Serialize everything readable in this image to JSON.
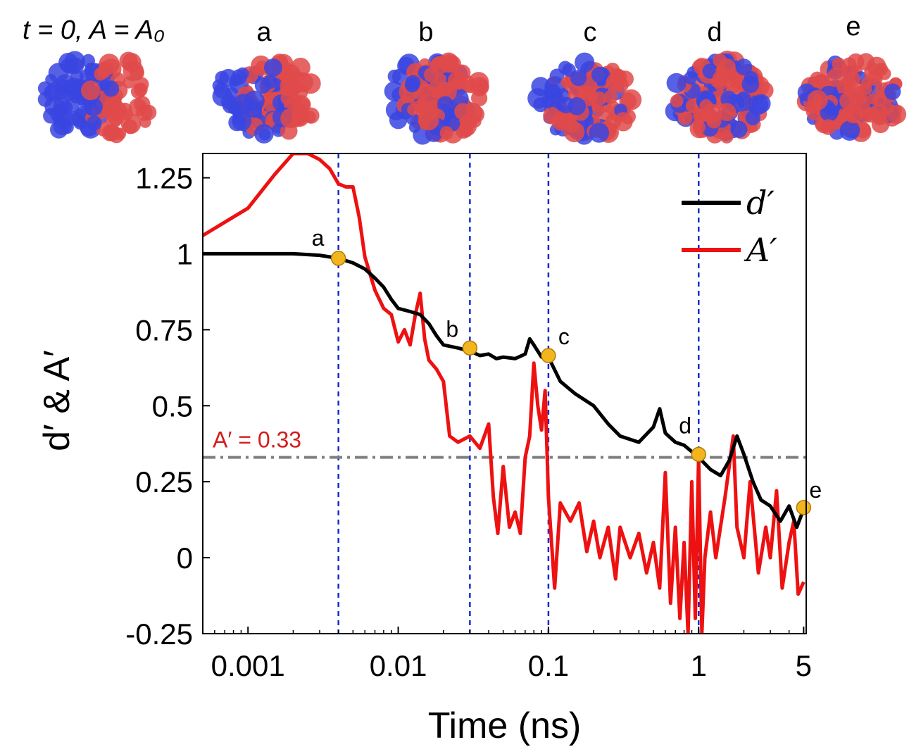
{
  "colors": {
    "d_prime": "#000000",
    "a_prime": "#ee1111",
    "marker": "#f2b51d",
    "vline": "#1a2bc9",
    "hline": "#808080",
    "protein_blue": "#3a45e0",
    "protein_red": "#e04a4a"
  },
  "snapshots": [
    {
      "label": "t = 0, A = A₀",
      "color_split": 0.5
    },
    {
      "label": "a",
      "color_split": 0.48
    },
    {
      "label": "b",
      "color_split": 0.42
    },
    {
      "label": "c",
      "color_split": 0.4
    },
    {
      "label": "d",
      "color_split": 0.35
    },
    {
      "label": "e",
      "color_split": 0.3
    }
  ],
  "chart_data": {
    "type": "line",
    "xscale": "log",
    "xlabel": "Time (ns)",
    "ylabel": "d′ & A′",
    "xlim": [
      0.0005,
      5.2
    ],
    "ylim": [
      -0.25,
      1.33
    ],
    "xticks": [
      0.001,
      0.01,
      0.1,
      1,
      5
    ],
    "xtick_labels": [
      "0.001",
      "0.01",
      "0.1",
      "1",
      "5"
    ],
    "yticks": [
      -0.25,
      0,
      0.25,
      0.5,
      0.75,
      1,
      1.25
    ],
    "ytick_labels": [
      "-0.25",
      "0",
      "0.25",
      "0.5",
      "0.75",
      "1",
      "1.25"
    ],
    "legend_position": "top-right",
    "series": [
      {
        "name": "d′",
        "x": [
          0.0005,
          0.001,
          0.002,
          0.003,
          0.004,
          0.005,
          0.006,
          0.007,
          0.008,
          0.009,
          0.01,
          0.012,
          0.014,
          0.016,
          0.018,
          0.02,
          0.025,
          0.03,
          0.035,
          0.04,
          0.045,
          0.05,
          0.06,
          0.07,
          0.075,
          0.08,
          0.09,
          0.1,
          0.12,
          0.15,
          0.2,
          0.25,
          0.3,
          0.4,
          0.5,
          0.55,
          0.6,
          0.7,
          0.8,
          1.0,
          1.2,
          1.4,
          1.6,
          1.8,
          2.0,
          2.3,
          2.6,
          3.0,
          3.5,
          4.0,
          4.5,
          5.0
        ],
        "y": [
          1.0,
          1.0,
          1.0,
          0.995,
          0.985,
          0.97,
          0.95,
          0.92,
          0.89,
          0.85,
          0.82,
          0.81,
          0.8,
          0.77,
          0.73,
          0.7,
          0.69,
          0.68,
          0.665,
          0.67,
          0.655,
          0.66,
          0.655,
          0.67,
          0.72,
          0.7,
          0.66,
          0.66,
          0.58,
          0.54,
          0.5,
          0.44,
          0.4,
          0.38,
          0.43,
          0.49,
          0.41,
          0.38,
          0.37,
          0.33,
          0.29,
          0.27,
          0.32,
          0.4,
          0.34,
          0.25,
          0.19,
          0.17,
          0.12,
          0.17,
          0.1,
          0.16
        ]
      },
      {
        "name": "A′",
        "x": [
          0.0005,
          0.001,
          0.0015,
          0.002,
          0.0025,
          0.003,
          0.0035,
          0.004,
          0.0045,
          0.005,
          0.0055,
          0.006,
          0.007,
          0.008,
          0.009,
          0.01,
          0.011,
          0.012,
          0.013,
          0.014,
          0.015,
          0.016,
          0.018,
          0.02,
          0.022,
          0.025,
          0.03,
          0.035,
          0.04,
          0.043,
          0.046,
          0.05,
          0.055,
          0.06,
          0.065,
          0.07,
          0.075,
          0.08,
          0.085,
          0.09,
          0.095,
          0.1,
          0.11,
          0.12,
          0.14,
          0.16,
          0.18,
          0.2,
          0.22,
          0.25,
          0.28,
          0.3,
          0.35,
          0.4,
          0.45,
          0.5,
          0.55,
          0.6,
          0.65,
          0.7,
          0.75,
          0.8,
          0.85,
          0.9,
          0.95,
          1.0,
          1.05,
          1.1,
          1.2,
          1.3,
          1.5,
          1.7,
          1.8,
          2.0,
          2.2,
          2.5,
          2.8,
          3.0,
          3.3,
          3.6,
          4.0,
          4.3,
          4.6,
          5.0
        ],
        "y": [
          1.06,
          1.15,
          1.26,
          1.33,
          1.33,
          1.31,
          1.28,
          1.23,
          1.22,
          1.22,
          1.12,
          0.99,
          0.88,
          0.82,
          0.8,
          0.71,
          0.75,
          0.7,
          0.8,
          0.87,
          0.72,
          0.65,
          0.62,
          0.58,
          0.4,
          0.38,
          0.4,
          0.36,
          0.44,
          0.2,
          0.08,
          0.3,
          0.1,
          0.15,
          0.08,
          0.33,
          0.4,
          0.64,
          0.5,
          0.42,
          0.55,
          0.2,
          -0.1,
          0.18,
          0.12,
          0.18,
          0.02,
          0.12,
          0.0,
          0.1,
          -0.07,
          0.1,
          0.0,
          0.08,
          -0.05,
          0.05,
          -0.1,
          0.28,
          -0.15,
          0.1,
          -0.2,
          0.05,
          -0.25,
          0.25,
          -0.2,
          0.33,
          -0.25,
          0.0,
          0.15,
          0.0,
          0.2,
          0.4,
          0.1,
          0.0,
          0.25,
          -0.05,
          0.1,
          0.0,
          0.22,
          -0.1,
          0.05,
          0.12,
          -0.12,
          -0.08
        ]
      }
    ],
    "markers": [
      {
        "label": "a",
        "x": 0.004,
        "y": 0.985
      },
      {
        "label": "b",
        "x": 0.03,
        "y": 0.69
      },
      {
        "label": "c",
        "x": 0.1,
        "y": 0.665
      },
      {
        "label": "d",
        "x": 1.0,
        "y": 0.34
      },
      {
        "label": "e",
        "x": 5.0,
        "y": 0.165
      }
    ],
    "vlines": [
      0.004,
      0.03,
      0.1,
      1.0
    ],
    "hline": {
      "y": 0.33,
      "label": "A′ = 0.33"
    }
  }
}
